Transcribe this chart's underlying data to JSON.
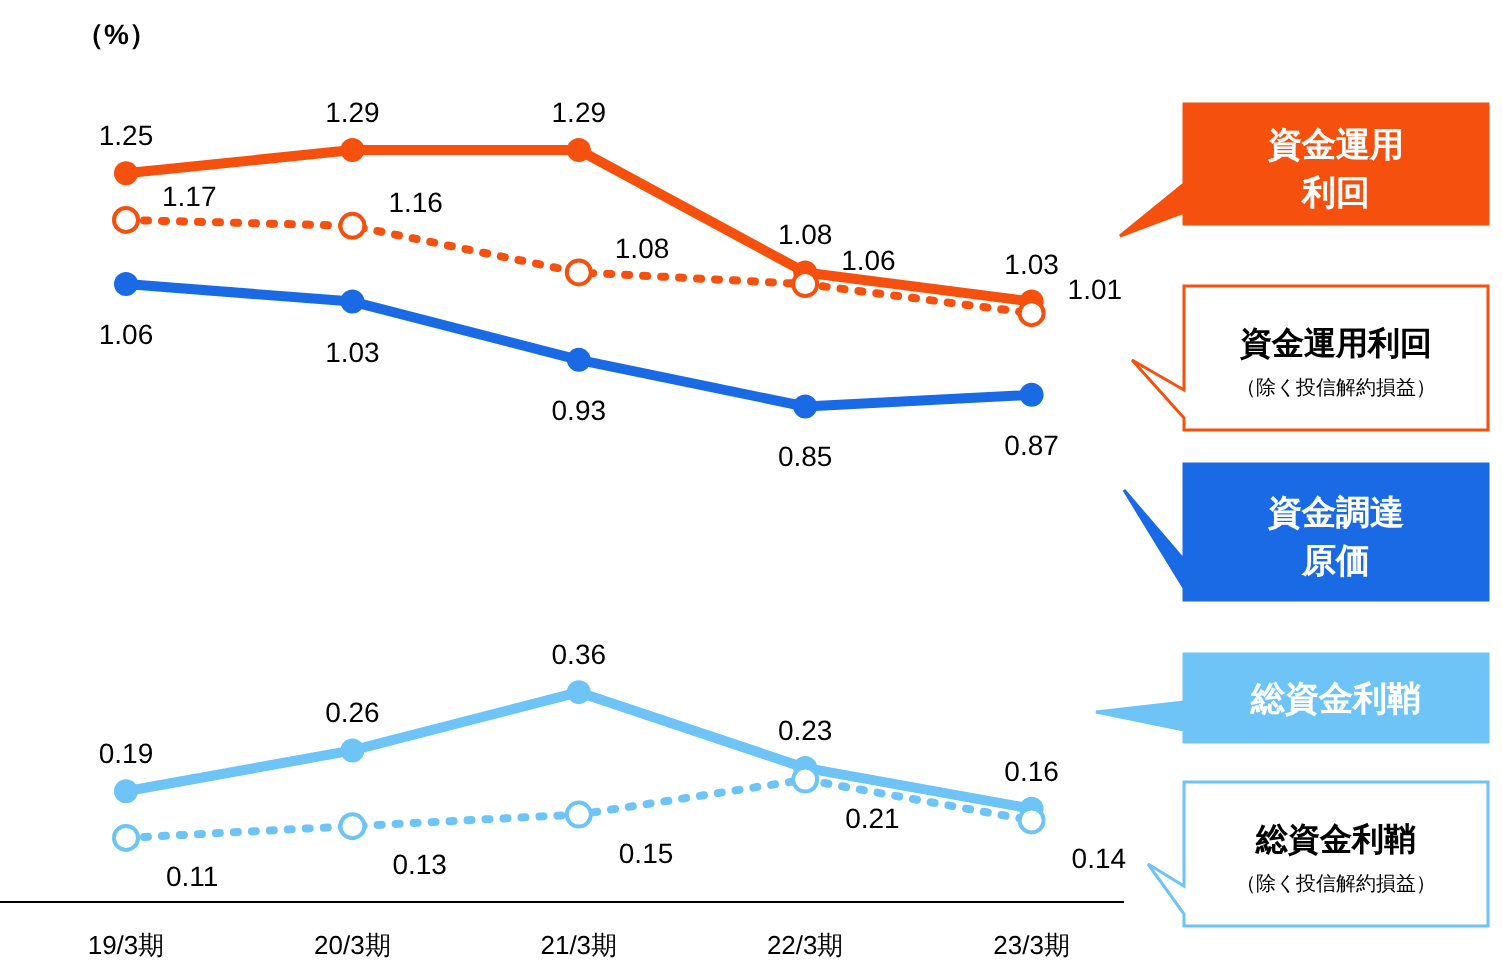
{
  "chart_data": {
    "type": "line",
    "ylabel": "（%）",
    "categories": [
      "19/3期",
      "20/3期",
      "21/3期",
      "22/3期",
      "23/3期"
    ],
    "tick_labels": "x",
    "data_labels": true,
    "legend": "right",
    "marker": "circle",
    "series": [
      {
        "name": "資金運用利回",
        "color": "#f6500f",
        "line_style": "solid",
        "values": [
          1.25,
          1.29,
          1.29,
          1.08,
          1.03
        ]
      },
      {
        "name": "資金運用利回（除く投信解約損益）",
        "color": "#f6500f",
        "line_style": "dotted",
        "values": [
          1.17,
          1.16,
          1.08,
          1.06,
          1.01
        ]
      },
      {
        "name": "資金調達原価",
        "color": "#1a6ae6",
        "line_style": "solid",
        "values": [
          1.06,
          1.03,
          0.93,
          0.85,
          0.87
        ]
      },
      {
        "name": "総資金利鞘",
        "color": "#6ec4f6",
        "line_style": "solid",
        "values": [
          0.19,
          0.26,
          0.36,
          0.23,
          0.16
        ]
      },
      {
        "name": "総資金利鞘（除く投信解約損益）",
        "color": "#6ec4f6",
        "line_style": "dotted",
        "values": [
          0.11,
          0.13,
          0.15,
          0.21,
          0.14
        ]
      }
    ]
  }
}
